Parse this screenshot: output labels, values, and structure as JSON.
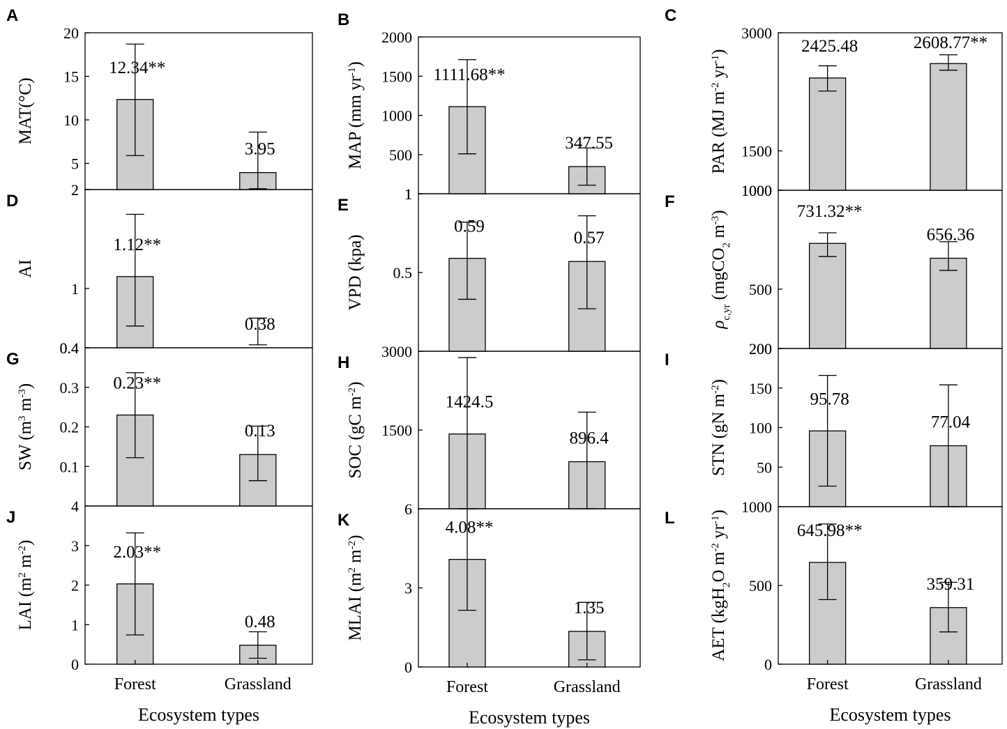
{
  "chart_data": [
    {
      "panel": "A",
      "type": "bar",
      "ylabel": "MAT(°C)",
      "ylim": [
        2,
        20
      ],
      "yticks": [
        2,
        5,
        10,
        15,
        20
      ],
      "categories": [
        "Forest",
        "Grassland"
      ],
      "values": [
        12.34,
        3.95
      ],
      "labels": [
        "12.34**",
        "3.95"
      ],
      "err_low": [
        5.9,
        2.1
      ],
      "err_high": [
        18.7,
        8.6
      ]
    },
    {
      "panel": "B",
      "type": "bar",
      "ylabel": "MAP (mm yr⁻¹)",
      "ylim": [
        1,
        2000
      ],
      "yticks": [
        1,
        500,
        1000,
        1500,
        2000
      ],
      "categories": [
        "Forest",
        "Grassland"
      ],
      "values": [
        1111.68,
        347.55
      ],
      "labels": [
        "1111.68**",
        "347.55"
      ],
      "err_low": [
        510,
        110
      ],
      "err_high": [
        1710,
        585
      ]
    },
    {
      "panel": "C",
      "type": "bar",
      "ylabel": "PAR (MJ m⁻² yr⁻¹)",
      "ylim": [
        1000,
        3000
      ],
      "yticks": [
        1000,
        1500,
        3000
      ],
      "categories": [
        "Forest",
        "Grassland"
      ],
      "values": [
        2425.48,
        2608.77
      ],
      "labels": [
        "2425.48",
        "2608.77**"
      ],
      "err_low": [
        2260,
        2525
      ],
      "err_high": [
        2580,
        2720
      ]
    },
    {
      "panel": "D",
      "type": "bar",
      "ylabel": "AI",
      "ylim": [
        0.4,
        2
      ],
      "yticks": [
        0.4,
        1,
        2
      ],
      "categories": [
        "Forest",
        "Grassland"
      ],
      "values": [
        1.12,
        0.38
      ],
      "labels": [
        "1.12**",
        "0.38"
      ],
      "err_low": [
        0.62,
        0.43
      ],
      "err_high": [
        1.75,
        0.7
      ]
    },
    {
      "panel": "E",
      "type": "bar",
      "ylabel": "VPD (kpa)",
      "ylim": [
        0,
        1
      ],
      "yticks": [
        0.5,
        1
      ],
      "categories": [
        "Forest",
        "Grassland"
      ],
      "values": [
        0.59,
        0.57
      ],
      "labels": [
        "0.59",
        "0.57"
      ],
      "err_low": [
        0.33,
        0.27
      ],
      "err_high": [
        0.82,
        0.86
      ]
    },
    {
      "panel": "F",
      "type": "bar",
      "ylabel": "ρc,yr (mgCO₂ m⁻³)",
      "ylim": [
        200,
        1000
      ],
      "yticks": [
        200,
        500,
        1000
      ],
      "categories": [
        "Forest",
        "Grassland"
      ],
      "values": [
        731.32,
        656.36
      ],
      "labels": [
        "731.32**",
        "656.36"
      ],
      "err_low": [
        665,
        595
      ],
      "err_high": [
        785,
        740
      ]
    },
    {
      "panel": "G",
      "type": "bar",
      "ylabel": "SW (m³ m⁻³)",
      "ylim": [
        0,
        0.4
      ],
      "yticks": [
        0.1,
        0.2,
        0.3,
        0.4
      ],
      "categories": [
        "Forest",
        "Grassland"
      ],
      "values": [
        0.23,
        0.13
      ],
      "labels": [
        "0.23**",
        "0.13"
      ],
      "err_low": [
        0.122,
        0.064
      ],
      "err_high": [
        0.337,
        0.202
      ]
    },
    {
      "panel": "H",
      "type": "bar",
      "ylabel": "SOC (gC m⁻²)",
      "ylim": [
        0,
        3000
      ],
      "yticks": [
        1500,
        3000
      ],
      "categories": [
        "Forest",
        "Grassland"
      ],
      "values": [
        1424.5,
        896.4
      ],
      "labels": [
        "1424.5",
        "896.4"
      ],
      "err_low": [
        0,
        0
      ],
      "err_high": [
        2880,
        1840
      ]
    },
    {
      "panel": "I",
      "type": "bar",
      "ylabel": "STN (gN m⁻²)",
      "ylim": [
        0,
        200
      ],
      "yticks": [
        50,
        100,
        150,
        200
      ],
      "categories": [
        "Forest",
        "Grassland"
      ],
      "values": [
        95.78,
        77.04
      ],
      "labels": [
        "95.78",
        "77.04"
      ],
      "err_low": [
        26,
        0
      ],
      "err_high": [
        166,
        154
      ]
    },
    {
      "panel": "J",
      "type": "bar",
      "ylabel": "LAI (m² m⁻²)",
      "ylim": [
        0,
        4
      ],
      "yticks": [
        0,
        1,
        2,
        3,
        4
      ],
      "categories": [
        "Forest",
        "Grassland"
      ],
      "values": [
        2.03,
        0.48
      ],
      "labels": [
        "2.03**",
        "0.48"
      ],
      "err_low": [
        0.74,
        0.15
      ],
      "err_high": [
        3.32,
        0.82
      ]
    },
    {
      "panel": "K",
      "type": "bar",
      "ylabel": "MLAI (m² m⁻²)",
      "ylim": [
        0,
        6
      ],
      "yticks": [
        0,
        3,
        6
      ],
      "categories": [
        "Forest",
        "Grassland"
      ],
      "values": [
        4.08,
        1.35
      ],
      "labels": [
        "4.08**",
        "1.35"
      ],
      "err_low": [
        2.15,
        0.27
      ],
      "err_high": [
        6.1,
        2.45
      ]
    },
    {
      "panel": "L",
      "type": "bar",
      "ylabel": "AET (kgH₂O m⁻² yr⁻¹)",
      "ylim": [
        0,
        1000
      ],
      "yticks": [
        0,
        500,
        1000
      ],
      "categories": [
        "Forest",
        "Grassland"
      ],
      "values": [
        645.98,
        359.31
      ],
      "labels": [
        "645.98**",
        "359.31"
      ],
      "err_low": [
        410,
        205
      ],
      "err_high": [
        890,
        520
      ]
    }
  ],
  "x_axis": {
    "categories": [
      "Forest",
      "Grassland"
    ],
    "title": "Ecosystem types"
  }
}
